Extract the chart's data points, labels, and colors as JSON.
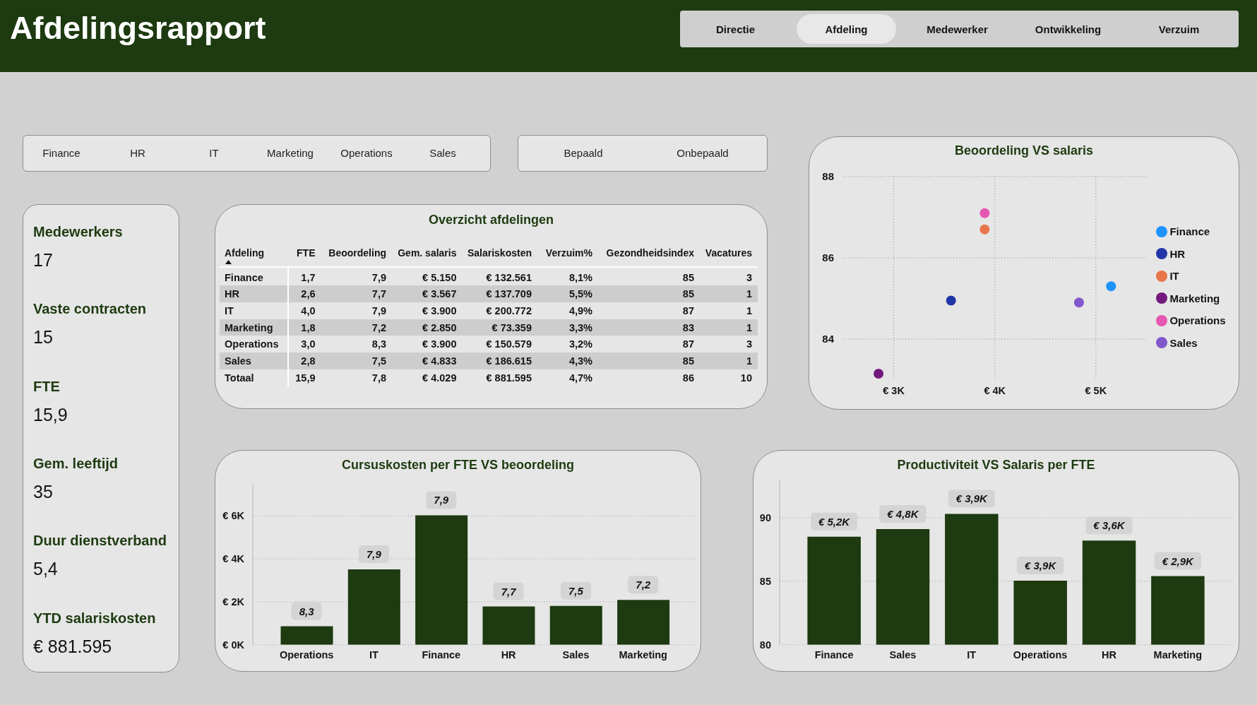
{
  "chart_data": [
    {
      "type": "other",
      "title": "Afdelingsrapport",
      "categories": [
        "Directie",
        "Afdeling",
        "Medewerker",
        "Ontwikkeling",
        "Verzuim"
      ]
    },
    {
      "type": "other",
      "categories": [
        "Finance",
        "HR",
        "IT",
        "Marketing",
        "Operations",
        "Sales"
      ]
    },
    {
      "type": "other",
      "categories": [
        "Bepaald",
        "Onbepaald"
      ]
    },
    {
      "type": "other",
      "categories": [
        "Medewerkers",
        "Vaste contracten",
        "FTE",
        "Gem. leeftijd",
        "Duur dienstverband",
        "YTD salariskosten"
      ],
      "value_labels": [
        "17",
        "15",
        "15,9",
        "35",
        "5,4",
        "€ 881.595"
      ]
    },
    {
      "type": "other",
      "title": "Overzicht afdelingen",
      "ylabel": "Afdeling",
      "categories": [
        "FTE",
        "Beoordeling",
        "Gem. salaris",
        "Salariskosten",
        "Verzuim%",
        "Gezondheidsindex",
        "Vacatures"
      ],
      "y_categories": [
        "Finance",
        "HR",
        "IT",
        "Marketing",
        "Operations",
        "Sales",
        "Totaal"
      ],
      "cell_labels": [
        [
          "1,7",
          "7,9",
          "€ 5.150",
          "€ 132.561",
          "8,1%",
          "85",
          "3"
        ],
        [
          "2,6",
          "7,7",
          "€ 3.567",
          "€ 137.709",
          "5,5%",
          "85",
          "1"
        ],
        [
          "4,0",
          "7,9",
          "€ 3.900",
          "€ 200.772",
          "4,9%",
          "87",
          "1"
        ],
        [
          "1,8",
          "7,2",
          "€ 2.850",
          "€ 73.359",
          "3,3%",
          "83",
          "1"
        ],
        [
          "3,0",
          "8,3",
          "€ 3.900",
          "€ 150.579",
          "3,2%",
          "87",
          "3"
        ],
        [
          "2,8",
          "7,5",
          "€ 4.833",
          "€ 186.615",
          "4,3%",
          "85",
          "1"
        ],
        [
          "15,9",
          "7,8",
          "€ 4.029",
          "€ 881.595",
          "4,7%",
          "86",
          "10"
        ]
      ]
    },
    {
      "type": "scatter",
      "title": "Beoordeling VS salaris",
      "series": [
        {
          "name": "Finance",
          "color": "#1e93fb",
          "x": [
            5150
          ],
          "values": [
            85.3
          ]
        },
        {
          "name": "HR",
          "color": "#2336a8",
          "x": [
            3567
          ],
          "values": [
            84.95
          ]
        },
        {
          "name": "IT",
          "color": "#e8764a",
          "x": [
            3900
          ],
          "values": [
            86.7
          ]
        },
        {
          "name": "Marketing",
          "color": "#73187d",
          "x": [
            2850
          ],
          "values": [
            83.15
          ]
        },
        {
          "name": "Operations",
          "color": "#e457b2",
          "x": [
            3900
          ],
          "values": [
            87.1
          ]
        },
        {
          "name": "Sales",
          "color": "#8257cc",
          "x": [
            4833
          ],
          "values": [
            84.9
          ]
        }
      ],
      "xlim": [
        2500,
        5500
      ],
      "xticks": [
        {
          "value": 3000,
          "label": "€ 3K"
        },
        {
          "value": 4000,
          "label": "€ 4K"
        },
        {
          "value": 5000,
          "label": "€ 5K"
        }
      ],
      "ylim": [
        83,
        88
      ],
      "yticks": [
        84,
        86,
        88
      ],
      "grid": true,
      "legend": "right",
      "marker": "circle"
    },
    {
      "type": "bar",
      "title": "Cursuskosten per FTE VS beoordeling",
      "categories": [
        "Operations",
        "IT",
        "Finance",
        "HR",
        "Sales",
        "Marketing"
      ],
      "values": [
        860,
        3510,
        6030,
        1780,
        1810,
        2090
      ],
      "annotations": [
        {
          "text": "8,3",
          "x": "Operations",
          "y": 860
        },
        {
          "text": "7,9",
          "x": "IT",
          "y": 3510
        },
        {
          "text": "7,9",
          "x": "Finance",
          "y": 6030
        },
        {
          "text": "7,7",
          "x": "HR",
          "y": 1780
        },
        {
          "text": "7,5",
          "x": "Sales",
          "y": 1810
        },
        {
          "text": "7,2",
          "x": "Marketing",
          "y": 2090
        }
      ],
      "color": "#1d3a10",
      "ylim": [
        0,
        7500
      ],
      "yticks": [
        {
          "value": 0,
          "label": "€ 0K"
        },
        {
          "value": 2000,
          "label": "€ 2K"
        },
        {
          "value": 4000,
          "label": "€ 4K"
        },
        {
          "value": 6000,
          "label": "€ 6K"
        }
      ],
      "grid": "y"
    },
    {
      "type": "bar",
      "title": "Productiviteit VS Salaris per FTE",
      "categories": [
        "Finance",
        "Sales",
        "IT",
        "Operations",
        "HR",
        "Marketing"
      ],
      "values": [
        88.5,
        89.1,
        90.3,
        85.05,
        88.2,
        85.4
      ],
      "annotations": [
        {
          "text": "€ 5,2K",
          "x": "Finance",
          "y": 88.5
        },
        {
          "text": "€ 4,8K",
          "x": "Sales",
          "y": 89.1
        },
        {
          "text": "€ 3,9K",
          "x": "IT",
          "y": 90.3
        },
        {
          "text": "€ 3,9K",
          "x": "Operations",
          "y": 85.05
        },
        {
          "text": "€ 3,6K",
          "x": "HR",
          "y": 88.2
        },
        {
          "text": "€ 2,9K",
          "x": "Marketing",
          "y": 85.4
        }
      ],
      "color": "#1d3a10",
      "ylim": [
        80,
        93
      ],
      "yticks": [
        80,
        85,
        90
      ],
      "grid": "y"
    }
  ]
}
